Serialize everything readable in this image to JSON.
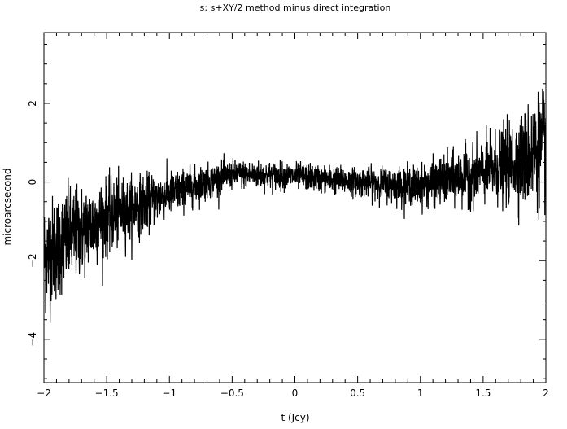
{
  "chart_data": {
    "type": "line",
    "title": "s: s+XY/2 method minus direct integration",
    "xlabel": "t (Jcy)",
    "ylabel": "microarcsecond",
    "xlim": [
      -2,
      2
    ],
    "ylim": [
      -5.1,
      3.8
    ],
    "xticks": [
      -2,
      -1.5,
      -1,
      -0.5,
      0,
      0.5,
      1,
      1.5,
      2
    ],
    "yticks": [
      -4,
      -2,
      0,
      2
    ],
    "xtick_labels": [
      "−2",
      "−1.5",
      "−1",
      "−0.5",
      "0",
      "0.5",
      "1",
      "1.5",
      "2"
    ],
    "ytick_labels": [
      "−4",
      "−2",
      "0",
      "2"
    ],
    "grid": false,
    "legend": "none",
    "series": [
      {
        "color": "#000000",
        "trend_x": [
          -2.0,
          -1.8,
          -1.5,
          -1.0,
          -0.5,
          0.0,
          0.5,
          1.0,
          1.5,
          1.75,
          2.0
        ],
        "trend_y": [
          -1.9,
          -1.4,
          -0.9,
          -0.3,
          0.2,
          0.15,
          0.0,
          -0.1,
          0.25,
          0.5,
          0.9
        ],
        "noise_x": [
          -2.0,
          -1.8,
          -1.5,
          -1.0,
          -0.5,
          0.0,
          0.5,
          1.0,
          1.5,
          1.75,
          2.0
        ],
        "noise_amp": [
          1.3,
          1.1,
          0.85,
          0.5,
          0.32,
          0.3,
          0.32,
          0.45,
          0.7,
          0.95,
          1.35
        ]
      }
    ]
  }
}
